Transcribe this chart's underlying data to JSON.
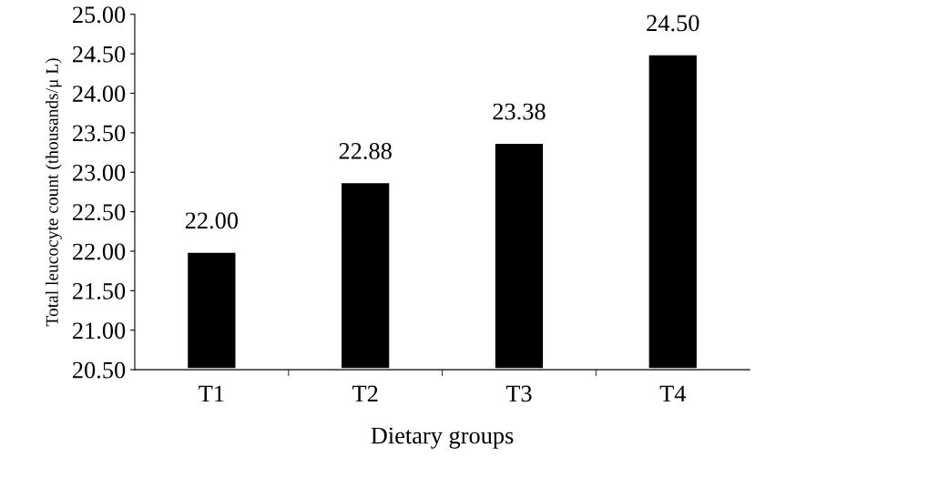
{
  "chart_data": {
    "type": "bar",
    "xlabel": "Dietary groups",
    "ylabel": "Total leucocyte count (thousands/μ L)",
    "categories": [
      "T1",
      "T2",
      "T3",
      "T4"
    ],
    "values": [
      22.0,
      22.88,
      23.38,
      24.5
    ],
    "value_labels": [
      "22.00",
      "22.88",
      "23.38",
      "24.50"
    ],
    "color": "#000000",
    "ylim": [
      20.5,
      25.0
    ],
    "yticks": [
      {
        "value": 20.5,
        "label": "20.50"
      },
      {
        "value": 21.0,
        "label": "21.00"
      },
      {
        "value": 21.5,
        "label": "21.50"
      },
      {
        "value": 22.0,
        "label": "22.00"
      },
      {
        "value": 22.5,
        "label": "22.50"
      },
      {
        "value": 23.0,
        "label": "23.00"
      },
      {
        "value": 23.5,
        "label": "23.50"
      },
      {
        "value": 24.0,
        "label": "24.00"
      },
      {
        "value": 24.5,
        "label": "24.50"
      },
      {
        "value": 25.0,
        "label": "25.00"
      }
    ],
    "grid": false,
    "legend": false
  }
}
